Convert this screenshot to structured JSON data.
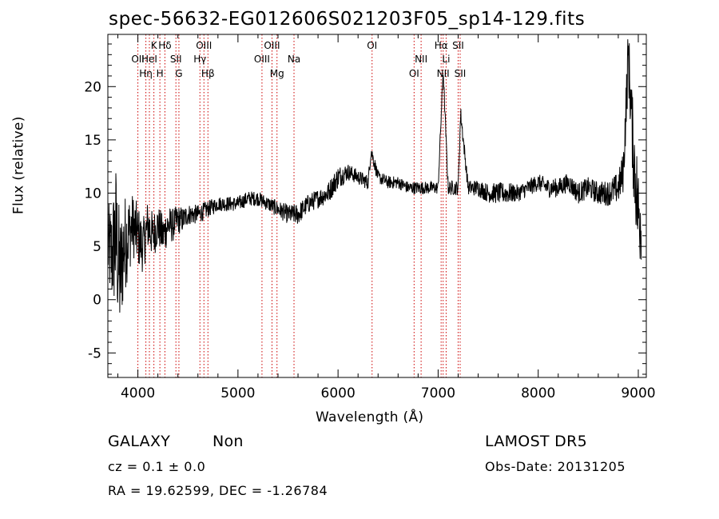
{
  "chart_data": {
    "type": "line",
    "title": "spec-56632-EG012606S021203F05_sp14-129.fits",
    "xlabel": "Wavelength (Å)",
    "ylabel": "Flux (relative)",
    "xlim": [
      3700,
      9080
    ],
    "ylim": [
      -7.3,
      24.9
    ],
    "xticks": [
      4000,
      5000,
      6000,
      7000,
      8000,
      9000
    ],
    "yticks": [
      -5,
      0,
      5,
      10,
      15,
      20
    ],
    "grid": false,
    "line_color": "#000000",
    "marker_color": "#cc0000",
    "spectrum": {
      "x": [
        3700,
        3740,
        3780,
        3820,
        3860,
        3900,
        3950,
        4000,
        4050,
        4100,
        4150,
        4200,
        4250,
        4300,
        4350,
        4400,
        4450,
        4500,
        4600,
        4700,
        4800,
        4900,
        5000,
        5100,
        5200,
        5300,
        5400,
        5500,
        5600,
        5700,
        5800,
        5900,
        6000,
        6100,
        6200,
        6300,
        6330,
        6400,
        6500,
        6600,
        6700,
        6800,
        6900,
        7000,
        7050,
        7100,
        7200,
        7225,
        7300,
        7400,
        7500,
        7600,
        7700,
        7800,
        7900,
        8000,
        8100,
        8200,
        8300,
        8400,
        8500,
        8600,
        8700,
        8800,
        8850,
        8900,
        8950,
        9000,
        9030
      ],
      "y": [
        5,
        4,
        6,
        2,
        5,
        6,
        7,
        6,
        5,
        7,
        6,
        7,
        6,
        7,
        7,
        7.5,
        7.5,
        8,
        8,
        8.5,
        9,
        9,
        9,
        9.5,
        9.5,
        9,
        8.5,
        8,
        8,
        9,
        9.5,
        10,
        11.5,
        12,
        11.5,
        11,
        14,
        11.5,
        11,
        11,
        10.5,
        10.5,
        10.5,
        10.5,
        21.5,
        10.5,
        10.5,
        17.5,
        10.5,
        10.5,
        10,
        10,
        10,
        10,
        10.5,
        11,
        10.5,
        10.5,
        11,
        10,
        10.5,
        10,
        10,
        10.5,
        12,
        23,
        14,
        8,
        8
      ],
      "noise_amplitude": [
        4,
        5,
        7,
        6,
        5,
        4,
        3,
        3,
        2.5,
        2.5,
        2.2,
        2,
        2,
        1.8,
        1.6,
        1.4,
        1.2,
        1,
        0.9,
        0.8,
        0.7,
        0.7,
        0.7,
        0.7,
        0.7,
        0.7,
        0.8,
        0.9,
        1,
        0.9,
        0.9,
        1,
        1.1,
        0.8,
        0.7,
        0.7,
        0.7,
        0.6,
        0.6,
        0.6,
        0.6,
        0.6,
        0.6,
        0.6,
        0.6,
        0.7,
        0.7,
        0.7,
        0.7,
        0.8,
        0.9,
        1,
        1,
        0.8,
        0.8,
        0.8,
        0.9,
        0.9,
        0.9,
        1,
        1,
        1.1,
        1.2,
        1.5,
        2,
        3,
        4,
        5,
        5
      ]
    },
    "spectral_lines": [
      {
        "wavelength": 3727,
        "label": "OII",
        "row": 2
      },
      {
        "wavelength": 3835,
        "label": "Hη",
        "row": 3
      },
      {
        "wavelength": 3889,
        "label": "HeI",
        "row": 2
      },
      {
        "wavelength": 3933,
        "label": "K",
        "row": 1
      },
      {
        "wavelength": 3968,
        "label": "H",
        "row": 3
      },
      {
        "wavelength": 4102,
        "label": "Hδ",
        "row": 1
      },
      {
        "wavelength": 4074,
        "label": "SII",
        "row": 2
      },
      {
        "wavelength": 4300,
        "label": "G",
        "row": 3
      },
      {
        "wavelength": 4340,
        "label": "Hγ",
        "row": 2
      },
      {
        "wavelength": 4363,
        "label": "OIII",
        "row": 1
      },
      {
        "wavelength": 4861,
        "label": "Hβ",
        "row": 3
      },
      {
        "wavelength": 4959,
        "label": "OIII",
        "row": 2
      },
      {
        "wavelength": 5007,
        "label": "OIII",
        "row": 1
      },
      {
        "wavelength": 5175,
        "label": "Mg",
        "row": 3
      },
      {
        "wavelength": 5893,
        "label": "Na",
        "row": 2
      },
      {
        "wavelength": 6300,
        "label": "OI",
        "row": 1
      },
      {
        "wavelength": 6364,
        "label": "OI",
        "row": 3
      },
      {
        "wavelength": 6548,
        "label": "NII",
        "row": 2
      },
      {
        "wavelength": 6563,
        "label": "Hα",
        "row": 1
      },
      {
        "wavelength": 6583,
        "label": "NII",
        "row": 3
      },
      {
        "wavelength": 6708,
        "label": "Li",
        "row": 2
      },
      {
        "wavelength": 6717,
        "label": "SII",
        "row": 1
      },
      {
        "wavelength": 6731,
        "label": "SII",
        "row": 3
      }
    ],
    "line_positions_plot_wavelength": [
      4000,
      4080,
      4115,
      4160,
      4220,
      4270,
      4380,
      4410,
      4620,
      4660,
      4700,
      5240,
      5340,
      5390,
      5560,
      6340,
      6760,
      6830,
      7030,
      7050,
      7080,
      7200,
      7220
    ]
  },
  "info": {
    "object_class": "GALAXY",
    "subclass": "Non",
    "cz": "cz = 0.1 ± 0.0",
    "radec": "RA =  19.62599, DEC =  -1.26784",
    "survey": "LAMOST DR5",
    "obs_date": "Obs-Date: 20131205"
  }
}
